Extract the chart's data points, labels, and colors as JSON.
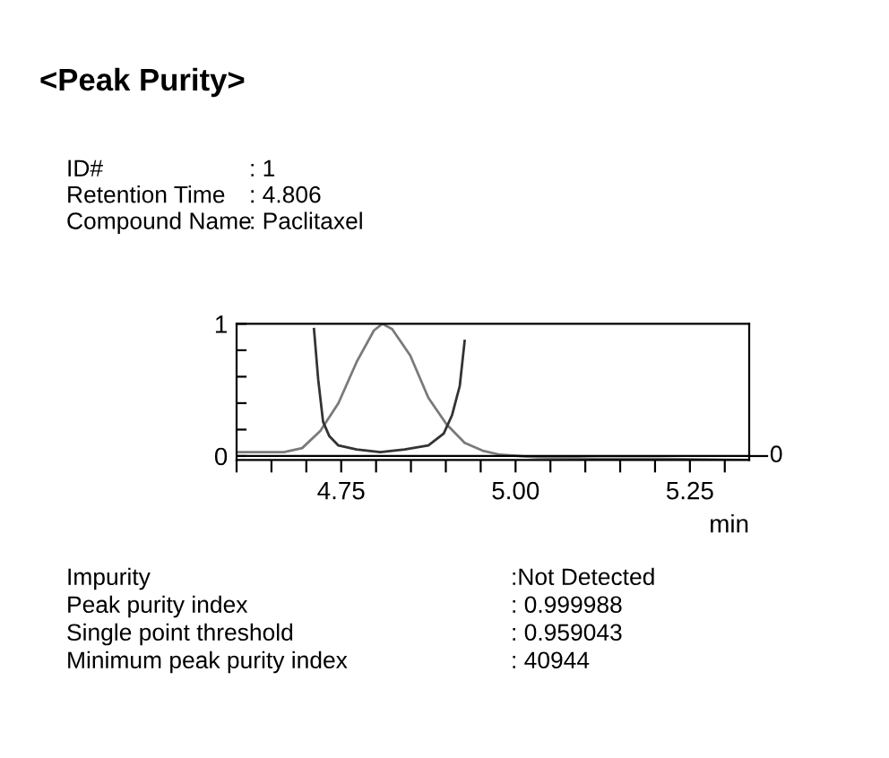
{
  "chart_data": {
    "type": "line",
    "title": "<Peak Purity>",
    "xlabel": "min",
    "annotations": [
      "ID#",
      ": 1",
      "Retention Time",
      ": 4.806",
      "Compound Name",
      ": Paclitaxel",
      "Impurity",
      ":Not Detected",
      "Peak purity index",
      ": 0.999988",
      "Single point threshold",
      ": 0.959043",
      "Minimum peak purity index",
      ": 40944",
      "0"
    ],
    "series": [
      {
        "color": "#7a7a7a",
        "x": [
          4.6,
          4.668,
          4.694,
          4.72,
          4.746,
          4.772,
          4.797,
          4.809,
          4.823,
          4.849,
          4.875,
          4.901,
          4.927,
          4.953,
          4.978,
          5.03,
          5.116,
          5.203,
          5.334
        ],
        "values": [
          0.03,
          0.03,
          0.06,
          0.19,
          0.4,
          0.71,
          0.95,
          1.0,
          0.96,
          0.76,
          0.44,
          0.24,
          0.1,
          0.04,
          0.01,
          -0.01,
          -0.02,
          -0.02,
          -0.03
        ]
      },
      {
        "color": "#333333",
        "x": [
          4.711,
          4.717,
          4.724,
          4.733,
          4.746,
          4.772,
          4.806,
          4.841,
          4.875,
          4.897,
          4.909,
          4.92,
          4.927
        ],
        "values": [
          0.96,
          0.58,
          0.26,
          0.15,
          0.08,
          0.05,
          0.03,
          0.05,
          0.08,
          0.17,
          0.31,
          0.53,
          0.87
        ]
      }
    ],
    "xlim": [
      4.6,
      5.335
    ],
    "ylim": [
      -0.03,
      1
    ],
    "xticks": [
      {
        "value": 4.6,
        "label": null
      },
      {
        "value": 4.65,
        "label": null
      },
      {
        "value": 4.7,
        "label": null
      },
      {
        "value": 4.75,
        "label": "4.75"
      },
      {
        "value": 4.8,
        "label": null
      },
      {
        "value": 4.85,
        "label": null
      },
      {
        "value": 4.9,
        "label": null
      },
      {
        "value": 4.95,
        "label": null
      },
      {
        "value": 5.0,
        "label": "5.00"
      },
      {
        "value": 5.05,
        "label": null
      },
      {
        "value": 5.1,
        "label": null
      },
      {
        "value": 5.15,
        "label": null
      },
      {
        "value": 5.2,
        "label": null
      },
      {
        "value": 5.25,
        "label": "5.25"
      },
      {
        "value": 5.3,
        "label": null
      }
    ],
    "yticks": [
      0,
      {
        "value": 0.2,
        "label": null
      },
      {
        "value": 0.4,
        "label": null
      },
      {
        "value": 0.6,
        "label": null
      },
      {
        "value": 0.8,
        "label": null
      },
      1
    ],
    "grid": false,
    "legend": false,
    "marker": "none",
    "line_style": "solid"
  }
}
